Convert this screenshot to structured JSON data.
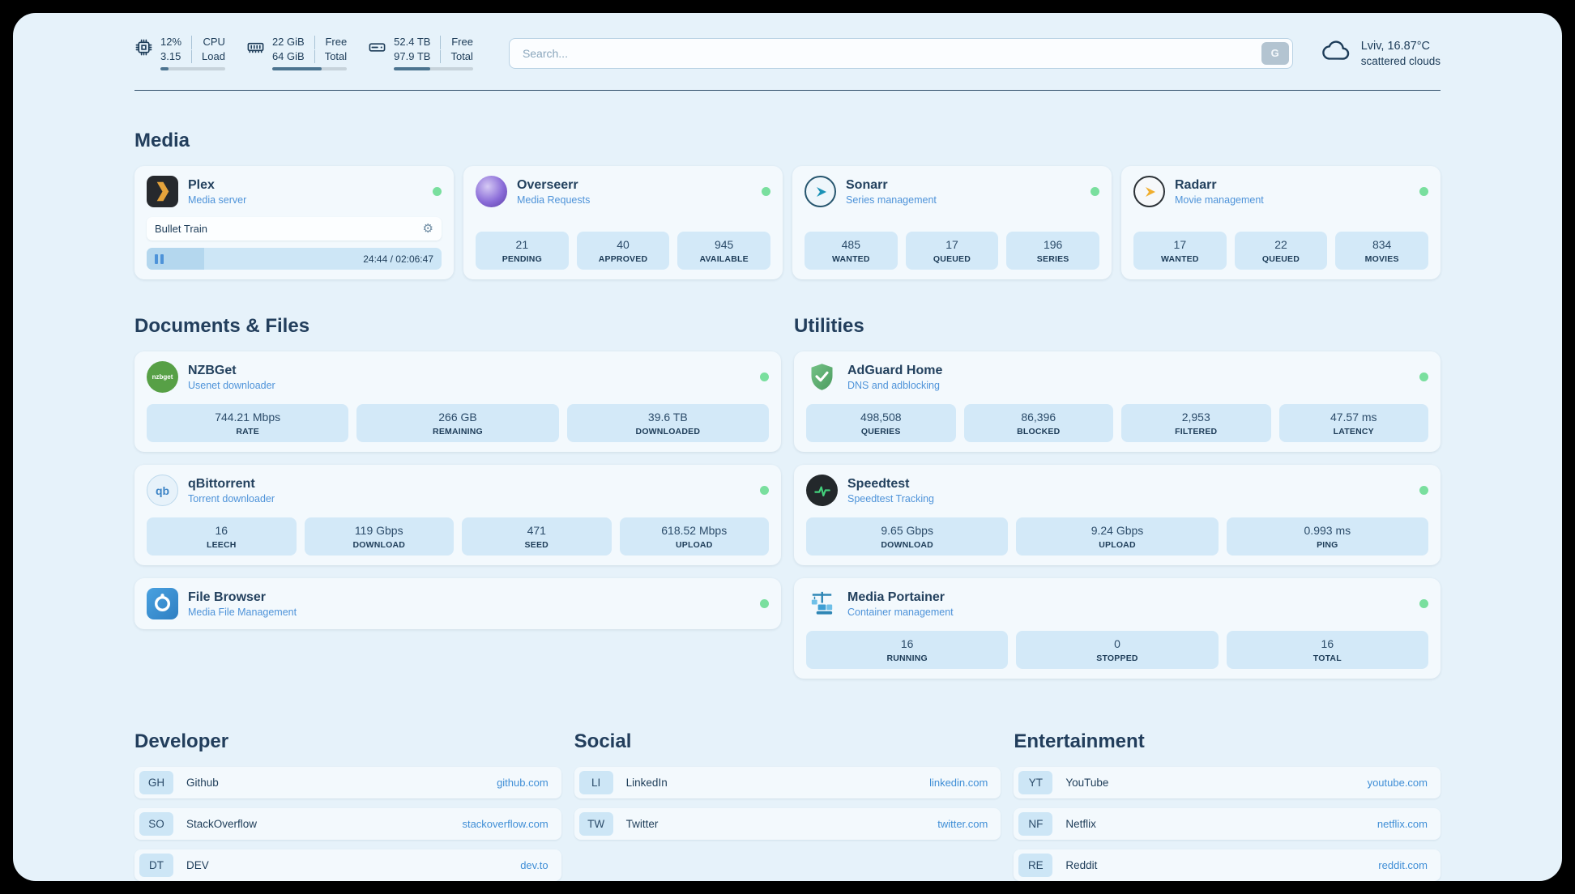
{
  "theme": {
    "frame_bg": "#e6f2fa",
    "card_bg": "#f3f9fd",
    "stat_bg": "#d3e9f8",
    "accent_blue": "#4e93d9",
    "link_blue": "#3f8ed6",
    "text_dark": "#1d3c58",
    "status_online": "#79df9e",
    "progress_fill": "#4c7490"
  },
  "header": {
    "metrics": [
      {
        "name": "cpu",
        "value_top": "12%",
        "value_bottom": "3.15",
        "label_top": "CPU",
        "label_bottom": "Load",
        "progress_pct": 12
      },
      {
        "name": "memory",
        "value_top": "22 GiB",
        "value_bottom": "64 GiB",
        "label_top": "Free",
        "label_bottom": "Total",
        "progress_pct": 66
      },
      {
        "name": "disk",
        "value_top": "52.4 TB",
        "value_bottom": "97.9 TB",
        "label_top": "Free",
        "label_bottom": "Total",
        "progress_pct": 46
      }
    ],
    "search": {
      "placeholder": "Search...",
      "engine_button": "G"
    },
    "weather": {
      "location": "Lviv, 16.87°C",
      "condition": "scattered clouds"
    }
  },
  "media": {
    "title": "Media",
    "plex": {
      "name": "Plex",
      "subtitle": "Media server",
      "status": "online",
      "now_playing": "Bullet Train",
      "time_display": "24:44 / 02:06:47",
      "progress_pct": 19.5
    },
    "overseerr": {
      "name": "Overseerr",
      "subtitle": "Media Requests",
      "status": "online",
      "stats": [
        {
          "value": "21",
          "label": "PENDING"
        },
        {
          "value": "40",
          "label": "APPROVED"
        },
        {
          "value": "945",
          "label": "AVAILABLE"
        }
      ]
    },
    "sonarr": {
      "name": "Sonarr",
      "subtitle": "Series management",
      "status": "online",
      "stats": [
        {
          "value": "485",
          "label": "WANTED"
        },
        {
          "value": "17",
          "label": "QUEUED"
        },
        {
          "value": "196",
          "label": "SERIES"
        }
      ]
    },
    "radarr": {
      "name": "Radarr",
      "subtitle": "Movie management",
      "status": "online",
      "stats": [
        {
          "value": "17",
          "label": "WANTED"
        },
        {
          "value": "22",
          "label": "QUEUED"
        },
        {
          "value": "834",
          "label": "MOVIES"
        }
      ]
    }
  },
  "documents": {
    "title": "Documents & Files",
    "nzbget": {
      "name": "NZBGet",
      "subtitle": "Usenet downloader",
      "status": "online",
      "stats": [
        {
          "value": "744.21 Mbps",
          "label": "RATE"
        },
        {
          "value": "266 GB",
          "label": "REMAINING"
        },
        {
          "value": "39.6 TB",
          "label": "DOWNLOADED"
        }
      ]
    },
    "qbittorrent": {
      "name": "qBittorrent",
      "subtitle": "Torrent downloader",
      "status": "online",
      "stats": [
        {
          "value": "16",
          "label": "LEECH"
        },
        {
          "value": "119 Gbps",
          "label": "DOWNLOAD"
        },
        {
          "value": "471",
          "label": "SEED"
        },
        {
          "value": "618.52 Mbps",
          "label": "UPLOAD"
        }
      ]
    },
    "filebrowser": {
      "name": "File Browser",
      "subtitle": "Media File Management",
      "status": "online"
    }
  },
  "utilities": {
    "title": "Utilities",
    "adguard": {
      "name": "AdGuard Home",
      "subtitle": "DNS and adblocking",
      "status": "online",
      "stats": [
        {
          "value": "498,508",
          "label": "QUERIES"
        },
        {
          "value": "86,396",
          "label": "BLOCKED"
        },
        {
          "value": "2,953",
          "label": "FILTERED"
        },
        {
          "value": "47.57 ms",
          "label": "LATENCY"
        }
      ]
    },
    "speedtest": {
      "name": "Speedtest",
      "subtitle": "Speedtest Tracking",
      "status": "online",
      "stats": [
        {
          "value": "9.65 Gbps",
          "label": "DOWNLOAD"
        },
        {
          "value": "9.24 Gbps",
          "label": "UPLOAD"
        },
        {
          "value": "0.993 ms",
          "label": "PING"
        }
      ]
    },
    "portainer": {
      "name": "Media Portainer",
      "subtitle": "Container management",
      "status": "online",
      "stats": [
        {
          "value": "16",
          "label": "RUNNING"
        },
        {
          "value": "0",
          "label": "STOPPED"
        },
        {
          "value": "16",
          "label": "TOTAL"
        }
      ]
    }
  },
  "links": {
    "developer": {
      "title": "Developer",
      "items": [
        {
          "badge": "GH",
          "name": "Github",
          "url": "github.com"
        },
        {
          "badge": "SO",
          "name": "StackOverflow",
          "url": "stackoverflow.com"
        },
        {
          "badge": "DT",
          "name": "DEV",
          "url": "dev.to"
        }
      ]
    },
    "social": {
      "title": "Social",
      "items": [
        {
          "badge": "LI",
          "name": "LinkedIn",
          "url": "linkedin.com"
        },
        {
          "badge": "TW",
          "name": "Twitter",
          "url": "twitter.com"
        }
      ]
    },
    "entertainment": {
      "title": "Entertainment",
      "items": [
        {
          "badge": "YT",
          "name": "YouTube",
          "url": "youtube.com"
        },
        {
          "badge": "NF",
          "name": "Netflix",
          "url": "netflix.com"
        },
        {
          "badge": "RE",
          "name": "Reddit",
          "url": "reddit.com"
        }
      ]
    }
  },
  "icons": {
    "gear": "⚙",
    "nzbget_text": "nzbget",
    "qbittorrent_text": "qb"
  }
}
